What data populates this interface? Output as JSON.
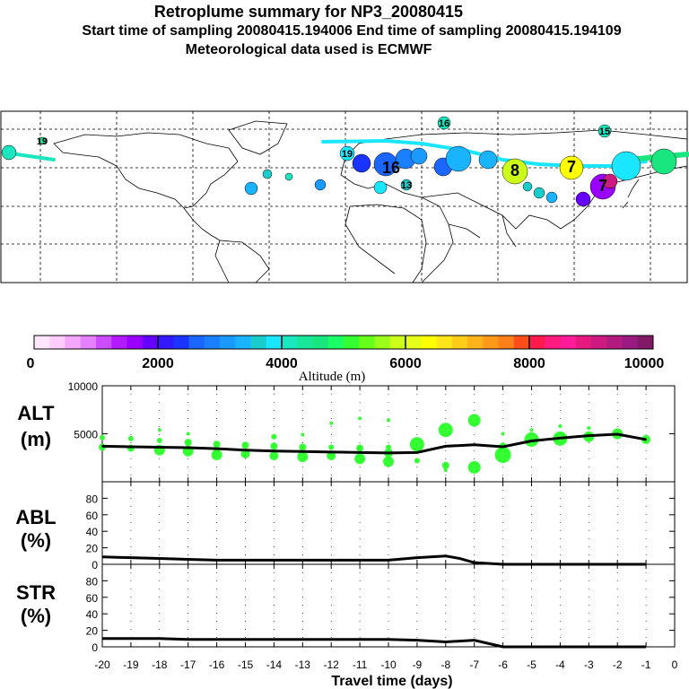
{
  "header": {
    "title": "Retroplume summary for NP3_20080415",
    "subtitle": "Start time of sampling 20080415.194006     End time of sampling 20080415.194109",
    "met_line": "Meteorological data used is ECMWF"
  },
  "colors": {
    "scale": [
      "#ffe6ff",
      "#ffccff",
      "#f5a6ff",
      "#e580ff",
      "#cc4dff",
      "#b31aff",
      "#9900ff",
      "#6600ff",
      "#3319ff",
      "#1a33ff",
      "#1a66ff",
      "#1a80ff",
      "#1a99ff",
      "#1ab3ff",
      "#1acccc",
      "#1ae6ff",
      "#1ae6c0",
      "#1ae699",
      "#1ae680",
      "#1aff66",
      "#33ff33",
      "#66ff1a",
      "#99ff1a",
      "#ccff1a",
      "#e6ff1a",
      "#ffff00",
      "#ffe61a",
      "#ffcc1a",
      "#ffb31a",
      "#ff991a",
      "#ff801a",
      "#ff4d1a",
      "#ff1a4d",
      "#ff1a80",
      "#ff1a99",
      "#e6197f",
      "#cc1a80",
      "#b31a80",
      "#991a80",
      "#801a66"
    ],
    "dots": "#33ff33",
    "line": "#000000"
  },
  "map": {
    "labels": [
      {
        "t": "16",
        "c": "#1ae6c0"
      },
      {
        "t": "15",
        "c": "#1ae6c0"
      },
      {
        "t": "19",
        "c": "#1ae6c0"
      },
      {
        "t": "19",
        "c": "#1ae6ff"
      },
      {
        "t": "8",
        "c": "#ccff1a"
      },
      {
        "t": "7",
        "c": "#ffff00"
      },
      {
        "t": "7",
        "c": "#9900ff"
      },
      {
        "t": "16",
        "c": "#1a80ff"
      },
      {
        "t": "13",
        "c": "#1ae6ff"
      }
    ]
  },
  "colorbar": {
    "ticks": [
      "0",
      "2000",
      "4000",
      "6000",
      "8000",
      "10000"
    ],
    "label": "Altitude (m)"
  },
  "chart_data": [
    {
      "type": "line",
      "panel": "ALT",
      "ylabel": "ALT",
      "yunit": "(m)",
      "ylim": [
        0,
        10000
      ],
      "yticks": [
        "10000",
        "5000"
      ],
      "x": [
        -20,
        -19,
        -18,
        -17,
        -16,
        -15,
        -14,
        -13,
        -12,
        -11,
        -10,
        -9,
        -8,
        -7,
        -6,
        -5,
        -4,
        -3,
        -2,
        -1
      ],
      "values": [
        3700,
        3650,
        3600,
        3550,
        3450,
        3300,
        3200,
        3150,
        3100,
        3050,
        3000,
        3050,
        3700,
        3850,
        3650,
        4250,
        4550,
        4800,
        4950,
        4400
      ],
      "scatter": [
        {
          "x": -20,
          "y": 3600,
          "r": 4
        },
        {
          "x": -20,
          "y": 4600,
          "r": 3
        },
        {
          "x": -19,
          "y": 3500,
          "r": 4
        },
        {
          "x": -19,
          "y": 4500,
          "r": 3
        },
        {
          "x": -18,
          "y": 3300,
          "r": 6
        },
        {
          "x": -18,
          "y": 4300,
          "r": 3
        },
        {
          "x": -18,
          "y": 5400,
          "r": 2
        },
        {
          "x": -17,
          "y": 3200,
          "r": 6
        },
        {
          "x": -17,
          "y": 4100,
          "r": 4
        },
        {
          "x": -17,
          "y": 5000,
          "r": 2
        },
        {
          "x": -16,
          "y": 2800,
          "r": 6
        },
        {
          "x": -16,
          "y": 3900,
          "r": 4
        },
        {
          "x": -15,
          "y": 2900,
          "r": 5
        },
        {
          "x": -15,
          "y": 3800,
          "r": 4
        },
        {
          "x": -14,
          "y": 2700,
          "r": 5
        },
        {
          "x": -14,
          "y": 3700,
          "r": 4
        },
        {
          "x": -14,
          "y": 4700,
          "r": 3
        },
        {
          "x": -13,
          "y": 2600,
          "r": 6
        },
        {
          "x": -13,
          "y": 3600,
          "r": 4
        },
        {
          "x": -13,
          "y": 4900,
          "r": 2
        },
        {
          "x": -12,
          "y": 2700,
          "r": 5
        },
        {
          "x": -12,
          "y": 3600,
          "r": 3
        },
        {
          "x": -12,
          "y": 6100,
          "r": 2
        },
        {
          "x": -11,
          "y": 2400,
          "r": 6
        },
        {
          "x": -11,
          "y": 3500,
          "r": 4
        },
        {
          "x": -11,
          "y": 6600,
          "r": 2
        },
        {
          "x": -10,
          "y": 2100,
          "r": 6
        },
        {
          "x": -10,
          "y": 3000,
          "r": 5
        },
        {
          "x": -10,
          "y": 3600,
          "r": 3
        },
        {
          "x": -10,
          "y": 6400,
          "r": 2
        },
        {
          "x": -9,
          "y": 3900,
          "r": 8
        },
        {
          "x": -9,
          "y": 2200,
          "r": 3
        },
        {
          "x": -8,
          "y": 5400,
          "r": 8
        },
        {
          "x": -8,
          "y": 1700,
          "r": 4
        },
        {
          "x": -8,
          "y": 1200,
          "r": 2
        },
        {
          "x": -7,
          "y": 6400,
          "r": 7
        },
        {
          "x": -7,
          "y": 1500,
          "r": 7
        },
        {
          "x": -6,
          "y": 2800,
          "r": 9
        },
        {
          "x": -6,
          "y": 3700,
          "r": 4
        },
        {
          "x": -6,
          "y": 5000,
          "r": 2
        },
        {
          "x": -5,
          "y": 4400,
          "r": 8
        },
        {
          "x": -5,
          "y": 5400,
          "r": 2
        },
        {
          "x": -4,
          "y": 4500,
          "r": 8
        },
        {
          "x": -4,
          "y": 5800,
          "r": 2
        },
        {
          "x": -3,
          "y": 4700,
          "r": 6
        },
        {
          "x": -3,
          "y": 5600,
          "r": 2
        },
        {
          "x": -2,
          "y": 5000,
          "r": 6
        },
        {
          "x": -1,
          "y": 4400,
          "r": 5
        }
      ]
    },
    {
      "type": "line",
      "panel": "ABL",
      "ylabel": "ABL",
      "yunit": "(%)",
      "ylim": [
        0,
        100
      ],
      "yticks": [
        "80",
        "60",
        "40",
        "20",
        "0"
      ],
      "x": [
        -20,
        -19,
        -18,
        -17,
        -16,
        -15,
        -14,
        -13,
        -12,
        -11,
        -10,
        -9,
        -8,
        -7.5,
        -7,
        -6,
        -5,
        -4,
        -3,
        -2,
        -1
      ],
      "values": [
        9,
        8,
        7,
        6,
        5,
        5,
        5,
        5,
        5,
        5,
        5,
        8,
        10,
        7,
        2,
        0,
        0,
        0,
        0,
        0,
        0
      ]
    },
    {
      "type": "line",
      "panel": "STR",
      "ylabel": "STR",
      "yunit": "(%)",
      "ylim": [
        0,
        100
      ],
      "yticks": [
        "80",
        "60",
        "40",
        "20",
        "0"
      ],
      "x": [
        -20,
        -19,
        -18,
        -17,
        -16,
        -15,
        -14,
        -13,
        -12,
        -11,
        -10,
        -9,
        -8,
        -7,
        -6,
        -5,
        -4,
        -3,
        -2,
        -1
      ],
      "values": [
        10,
        10,
        10,
        9,
        9,
        9,
        9,
        9,
        9,
        9,
        9,
        8,
        6,
        8,
        0,
        0,
        0,
        0,
        0,
        0
      ]
    }
  ],
  "xaxis": {
    "ticks": [
      "-20",
      "-19",
      "-18",
      "-17",
      "-16",
      "-15",
      "-14",
      "-13",
      "-12",
      "-11",
      "-10",
      "-9",
      "-8",
      "-7",
      "-6",
      "-5",
      "-4",
      "-3",
      "-2",
      "-1",
      "0"
    ],
    "label": "Travel time (days)"
  }
}
